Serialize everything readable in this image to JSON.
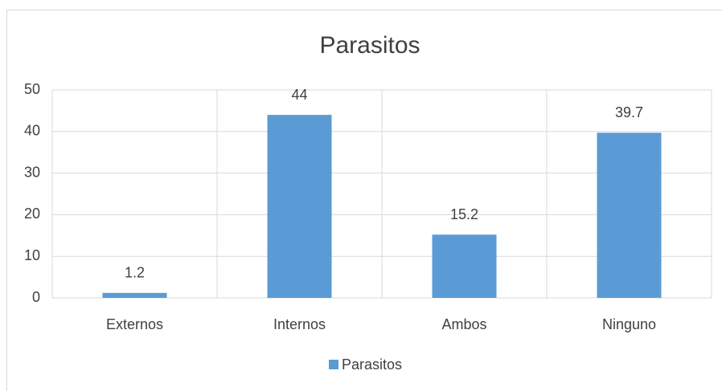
{
  "chart_data": {
    "type": "bar",
    "title": "Parasitos",
    "categories": [
      "Externos",
      "Internos",
      "Ambos",
      "Ninguno"
    ],
    "series": [
      {
        "name": "Parasitos",
        "color": "#5b9bd5",
        "values": [
          1.2,
          44,
          15.2,
          39.7
        ]
      }
    ],
    "ylim": [
      0,
      50
    ],
    "yticks": [
      0,
      10,
      20,
      30,
      40,
      50
    ],
    "grid": true,
    "legend": "bottom"
  }
}
